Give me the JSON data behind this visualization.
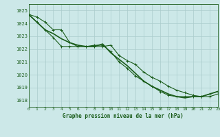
{
  "bg_color": "#cce8e8",
  "grid_color": "#aacccc",
  "line_color": "#1a5c1a",
  "marker_color": "#1a5c1a",
  "title": "Graphe pression niveau de la mer (hPa)",
  "xlim": [
    0,
    23
  ],
  "ylim": [
    1017.5,
    1025.5
  ],
  "yticks": [
    1018,
    1019,
    1020,
    1021,
    1022,
    1023,
    1024,
    1025
  ],
  "xticks": [
    0,
    1,
    2,
    3,
    4,
    5,
    6,
    7,
    8,
    9,
    10,
    11,
    12,
    13,
    14,
    15,
    16,
    17,
    18,
    19,
    20,
    21,
    22,
    23
  ],
  "series": [
    [
      1024.7,
      1024.5,
      1024.1,
      1023.5,
      1023.5,
      1022.5,
      1022.2,
      1022.2,
      1022.2,
      1022.2,
      1022.3,
      1021.5,
      1021.1,
      1020.8,
      1020.2,
      1019.8,
      1019.5,
      1019.1,
      1018.8,
      1018.6,
      1018.4,
      1018.3,
      1018.3,
      1018.5
    ],
    [
      1024.7,
      1024.1,
      1023.5,
      1023.2,
      1022.8,
      1022.5,
      1022.3,
      1022.2,
      1022.2,
      1022.4,
      1021.7,
      1021.2,
      1020.7,
      1020.1,
      1019.5,
      1019.1,
      1018.8,
      1018.5,
      1018.3,
      1018.2,
      1018.3,
      1018.3,
      1018.5,
      1018.7
    ],
    [
      1024.7,
      1024.1,
      1023.5,
      1022.9,
      1022.2,
      1022.2,
      1022.2,
      1022.2,
      1022.3,
      1022.3,
      1021.8,
      1021.0,
      1020.5,
      1019.9,
      1019.5,
      1019.1,
      1018.7,
      1018.4,
      1018.3,
      1018.3,
      1018.3,
      1018.3,
      1018.5,
      1018.7
    ]
  ],
  "has_markers": [
    true,
    false,
    true
  ],
  "linewidths": [
    0.8,
    1.2,
    0.8
  ],
  "title_fontsize": 5.5,
  "tick_fontsize": 4.5
}
